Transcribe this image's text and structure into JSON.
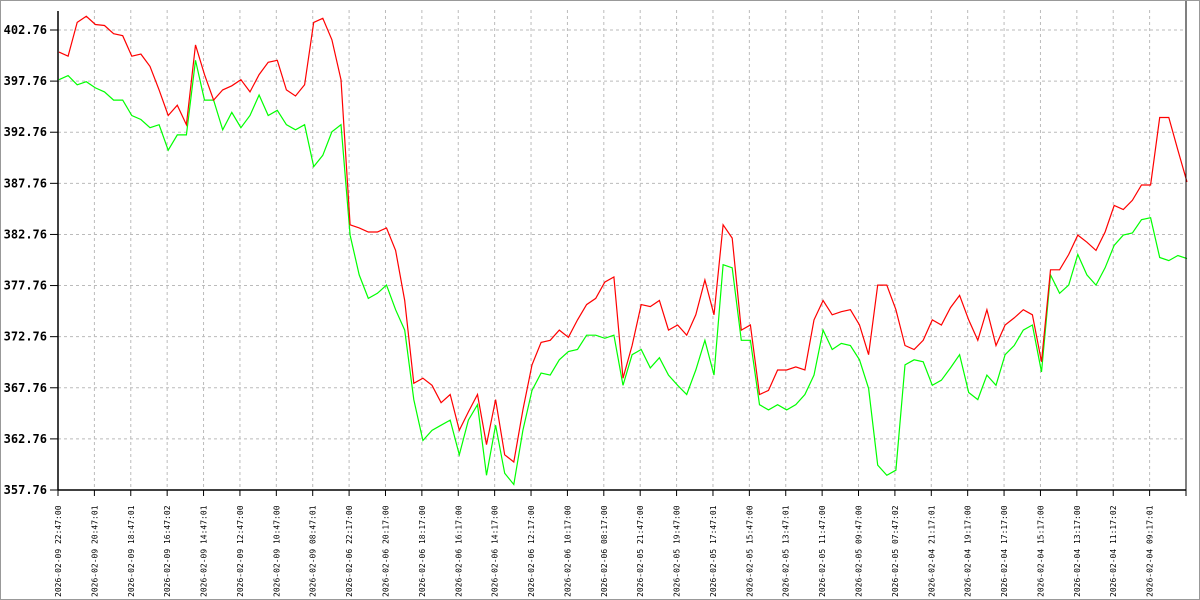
{
  "chart_data": {
    "type": "line",
    "title": "",
    "xlabel": "",
    "ylabel": "",
    "ylim": [
      357.76,
      402.76
    ],
    "y_ticks": [
      "357.76",
      "362.76",
      "367.76",
      "372.76",
      "377.76",
      "382.76",
      "387.76",
      "392.76",
      "397.76",
      "402.76"
    ],
    "x_ticks": [
      "2026-02-09 22:47:00",
      "2026-02-09 20:47:01",
      "2026-02-09 18:47:01",
      "2026-02-09 16:47:02",
      "2026-02-09 14:47:01",
      "2026-02-09 12:47:00",
      "2026-02-09 10:47:00",
      "2026-02-09 08:47:01",
      "2026-02-06 22:17:00",
      "2026-02-06 20:17:00",
      "2026-02-06 18:17:00",
      "2026-02-06 16:17:00",
      "2026-02-06 14:17:00",
      "2026-02-06 12:17:00",
      "2026-02-06 10:17:00",
      "2026-02-06 08:17:00",
      "2026-02-05 21:47:00",
      "2026-02-05 19:47:00",
      "2026-02-05 17:47:01",
      "2026-02-05 15:47:00",
      "2026-02-05 13:47:01",
      "2026-02-05 11:47:00",
      "2026-02-05 09:47:00",
      "2026-02-05 07:47:02",
      "2026-02-04 21:17:01",
      "2026-02-04 19:17:00",
      "2026-02-04 17:17:00",
      "2026-02-04 15:17:00",
      "2026-02-04 13:17:00",
      "2026-02-04 11:17:02",
      "2026-02-04 09:17:01"
    ],
    "points_per_tick": 4,
    "grid": true,
    "legend": "none",
    "series": [
      {
        "color": "#ff0000",
        "values": [
          400.6,
          400.2,
          403.5,
          404.1,
          403.3,
          403.2,
          402.4,
          402.2,
          400.2,
          400.4,
          399.2,
          396.9,
          394.4,
          395.4,
          393.5,
          401.3,
          398.4,
          395.9,
          396.9,
          397.3,
          397.9,
          396.7,
          398.4,
          399.6,
          399.8,
          396.9,
          396.3,
          397.4,
          403.5,
          403.9,
          401.8,
          397.9,
          383.7,
          383.4,
          383.0,
          383.0,
          383.4,
          381.2,
          376.3,
          368.2,
          368.7,
          368.0,
          366.3,
          367.1,
          363.6,
          365.4,
          367.1,
          362.2,
          366.6,
          361.2,
          360.5,
          365.6,
          370.0,
          372.2,
          372.4,
          373.4,
          372.7,
          374.4,
          375.9,
          376.5,
          378.1,
          378.6,
          368.7,
          371.9,
          375.9,
          375.7,
          376.3,
          373.4,
          373.9,
          372.9,
          374.9,
          378.3,
          374.9,
          383.7,
          382.4,
          373.4,
          373.9,
          367.1,
          367.5,
          369.5,
          369.5,
          369.8,
          369.5,
          374.4,
          376.3,
          374.9,
          375.2,
          375.4,
          373.9,
          371.0,
          377.8,
          377.8,
          375.4,
          371.9,
          371.5,
          372.4,
          374.4,
          373.9,
          375.6,
          376.8,
          374.4,
          372.4,
          375.4,
          371.9,
          373.9,
          374.6,
          375.4,
          374.9,
          370.3,
          379.3,
          379.3,
          380.8,
          382.7,
          382.0,
          381.2,
          383.0,
          385.6,
          385.2,
          386.1,
          387.6,
          387.6,
          394.2,
          394.2,
          391.0,
          387.9
        ]
      },
      {
        "color": "#00ff00",
        "values": [
          397.9,
          398.3,
          397.4,
          397.7,
          397.1,
          396.7,
          395.9,
          395.9,
          394.4,
          394.0,
          393.2,
          393.5,
          391.0,
          392.5,
          392.5,
          399.8,
          395.9,
          395.9,
          393.0,
          394.7,
          393.2,
          394.4,
          396.4,
          394.4,
          394.9,
          393.5,
          393.0,
          393.5,
          389.4,
          390.5,
          392.8,
          393.5,
          382.7,
          378.8,
          376.5,
          377.0,
          377.8,
          375.4,
          373.4,
          366.6,
          362.6,
          363.6,
          364.1,
          364.6,
          361.2,
          364.6,
          366.1,
          359.2,
          364.1,
          359.4,
          358.3,
          363.6,
          367.5,
          369.2,
          369.0,
          370.5,
          371.3,
          371.5,
          372.9,
          372.9,
          372.6,
          372.9,
          368.0,
          371.0,
          371.5,
          369.7,
          370.7,
          369.0,
          368.0,
          367.1,
          369.5,
          372.4,
          369.0,
          379.8,
          379.5,
          372.4,
          372.4,
          366.1,
          365.6,
          366.1,
          365.6,
          366.1,
          367.1,
          369.0,
          373.4,
          371.5,
          372.1,
          371.9,
          370.5,
          367.7,
          360.2,
          359.2,
          359.7,
          370.0,
          370.5,
          370.3,
          368.0,
          368.5,
          369.7,
          371.0,
          367.3,
          366.6,
          369.0,
          368.0,
          371.0,
          371.9,
          373.4,
          373.9,
          369.3,
          378.8,
          377.0,
          377.8,
          380.8,
          378.8,
          377.8,
          379.5,
          381.7,
          382.7,
          382.9,
          384.2,
          384.4,
          380.5,
          380.2,
          380.7,
          380.4
        ]
      }
    ]
  }
}
